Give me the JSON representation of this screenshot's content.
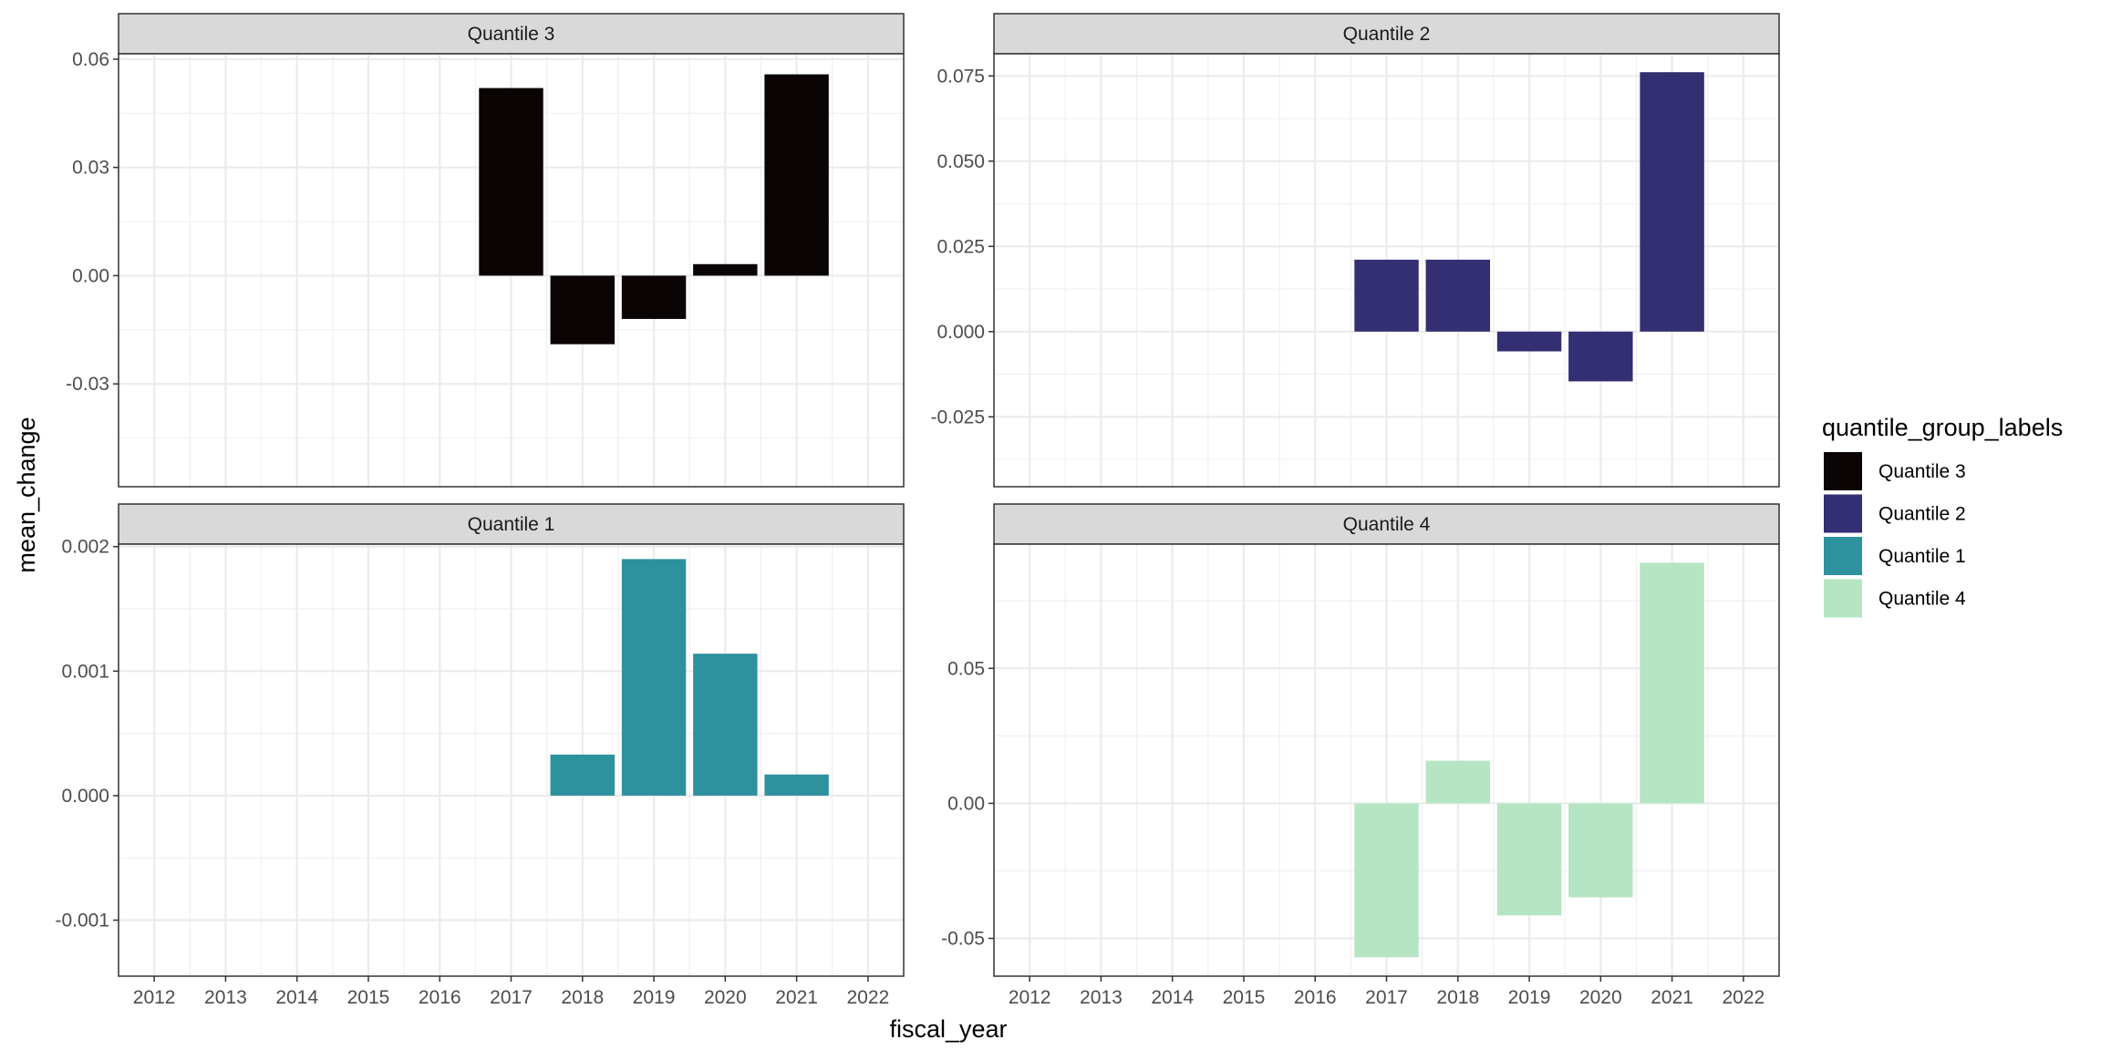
{
  "chart_data": {
    "type": "bar",
    "layout": "facet-grid",
    "xlabel": "fiscal_year",
    "ylabel": "mean_change",
    "x_ticks": [
      "2012",
      "2013",
      "2014",
      "2015",
      "2016",
      "2017",
      "2018",
      "2019",
      "2020",
      "2021",
      "2022"
    ],
    "xlim": [
      2011.5,
      2022.5
    ],
    "legend": {
      "title": "quantile_group_labels",
      "placement": "right",
      "entries": [
        {
          "label": "Quantile 3",
          "color": "#0b0405"
        },
        {
          "label": "Quantile 2",
          "color": "#342e73"
        },
        {
          "label": "Quantile 1",
          "color": "#2d919e"
        },
        {
          "label": "Quantile 4",
          "color": "#b5e5c2"
        }
      ]
    },
    "grid": true,
    "panels": [
      {
        "name": "Quantile 3",
        "color": "#0b0405",
        "ylim": [
          -0.0585,
          0.0615
        ],
        "yticks": [
          -0.03,
          0.0,
          0.03,
          0.06
        ],
        "ytick_labels": [
          "-0.03",
          "0.00",
          "0.03",
          "0.06"
        ],
        "x": [
          2017,
          2018,
          2019,
          2020,
          2021
        ],
        "values": [
          0.052,
          -0.019,
          -0.012,
          0.0032,
          0.0558
        ]
      },
      {
        "name": "Quantile 2",
        "color": "#342e73",
        "ylim": [
          -0.0455,
          0.0815
        ],
        "yticks": [
          -0.025,
          0.0,
          0.025,
          0.05,
          0.075
        ],
        "ytick_labels": [
          "-0.025",
          "0.000",
          "0.025",
          "0.050",
          "0.075"
        ],
        "x": [
          2017,
          2018,
          2019,
          2020,
          2021
        ],
        "values": [
          0.0211,
          0.0211,
          -0.0058,
          -0.0146,
          0.0761
        ]
      },
      {
        "name": "Quantile 1",
        "color": "#2d919e",
        "ylim": [
          -0.00145,
          0.00202
        ],
        "yticks": [
          -0.001,
          0.0,
          0.001,
          0.002
        ],
        "ytick_labels": [
          "-0.001",
          "0.000",
          "0.001",
          "0.002"
        ],
        "x": [
          2018,
          2019,
          2020,
          2021
        ],
        "values": [
          0.00033,
          0.0019,
          0.00114,
          0.00017
        ]
      },
      {
        "name": "Quantile 4",
        "color": "#b5e5c2",
        "ylim": [
          -0.064,
          0.096
        ],
        "yticks": [
          -0.05,
          0.0,
          0.05
        ],
        "ytick_labels": [
          "-0.05",
          "0.00",
          "0.05"
        ],
        "x": [
          2017,
          2018,
          2019,
          2020,
          2021
        ],
        "values": [
          -0.057,
          0.0158,
          -0.0415,
          -0.0348,
          0.0891
        ]
      }
    ]
  }
}
